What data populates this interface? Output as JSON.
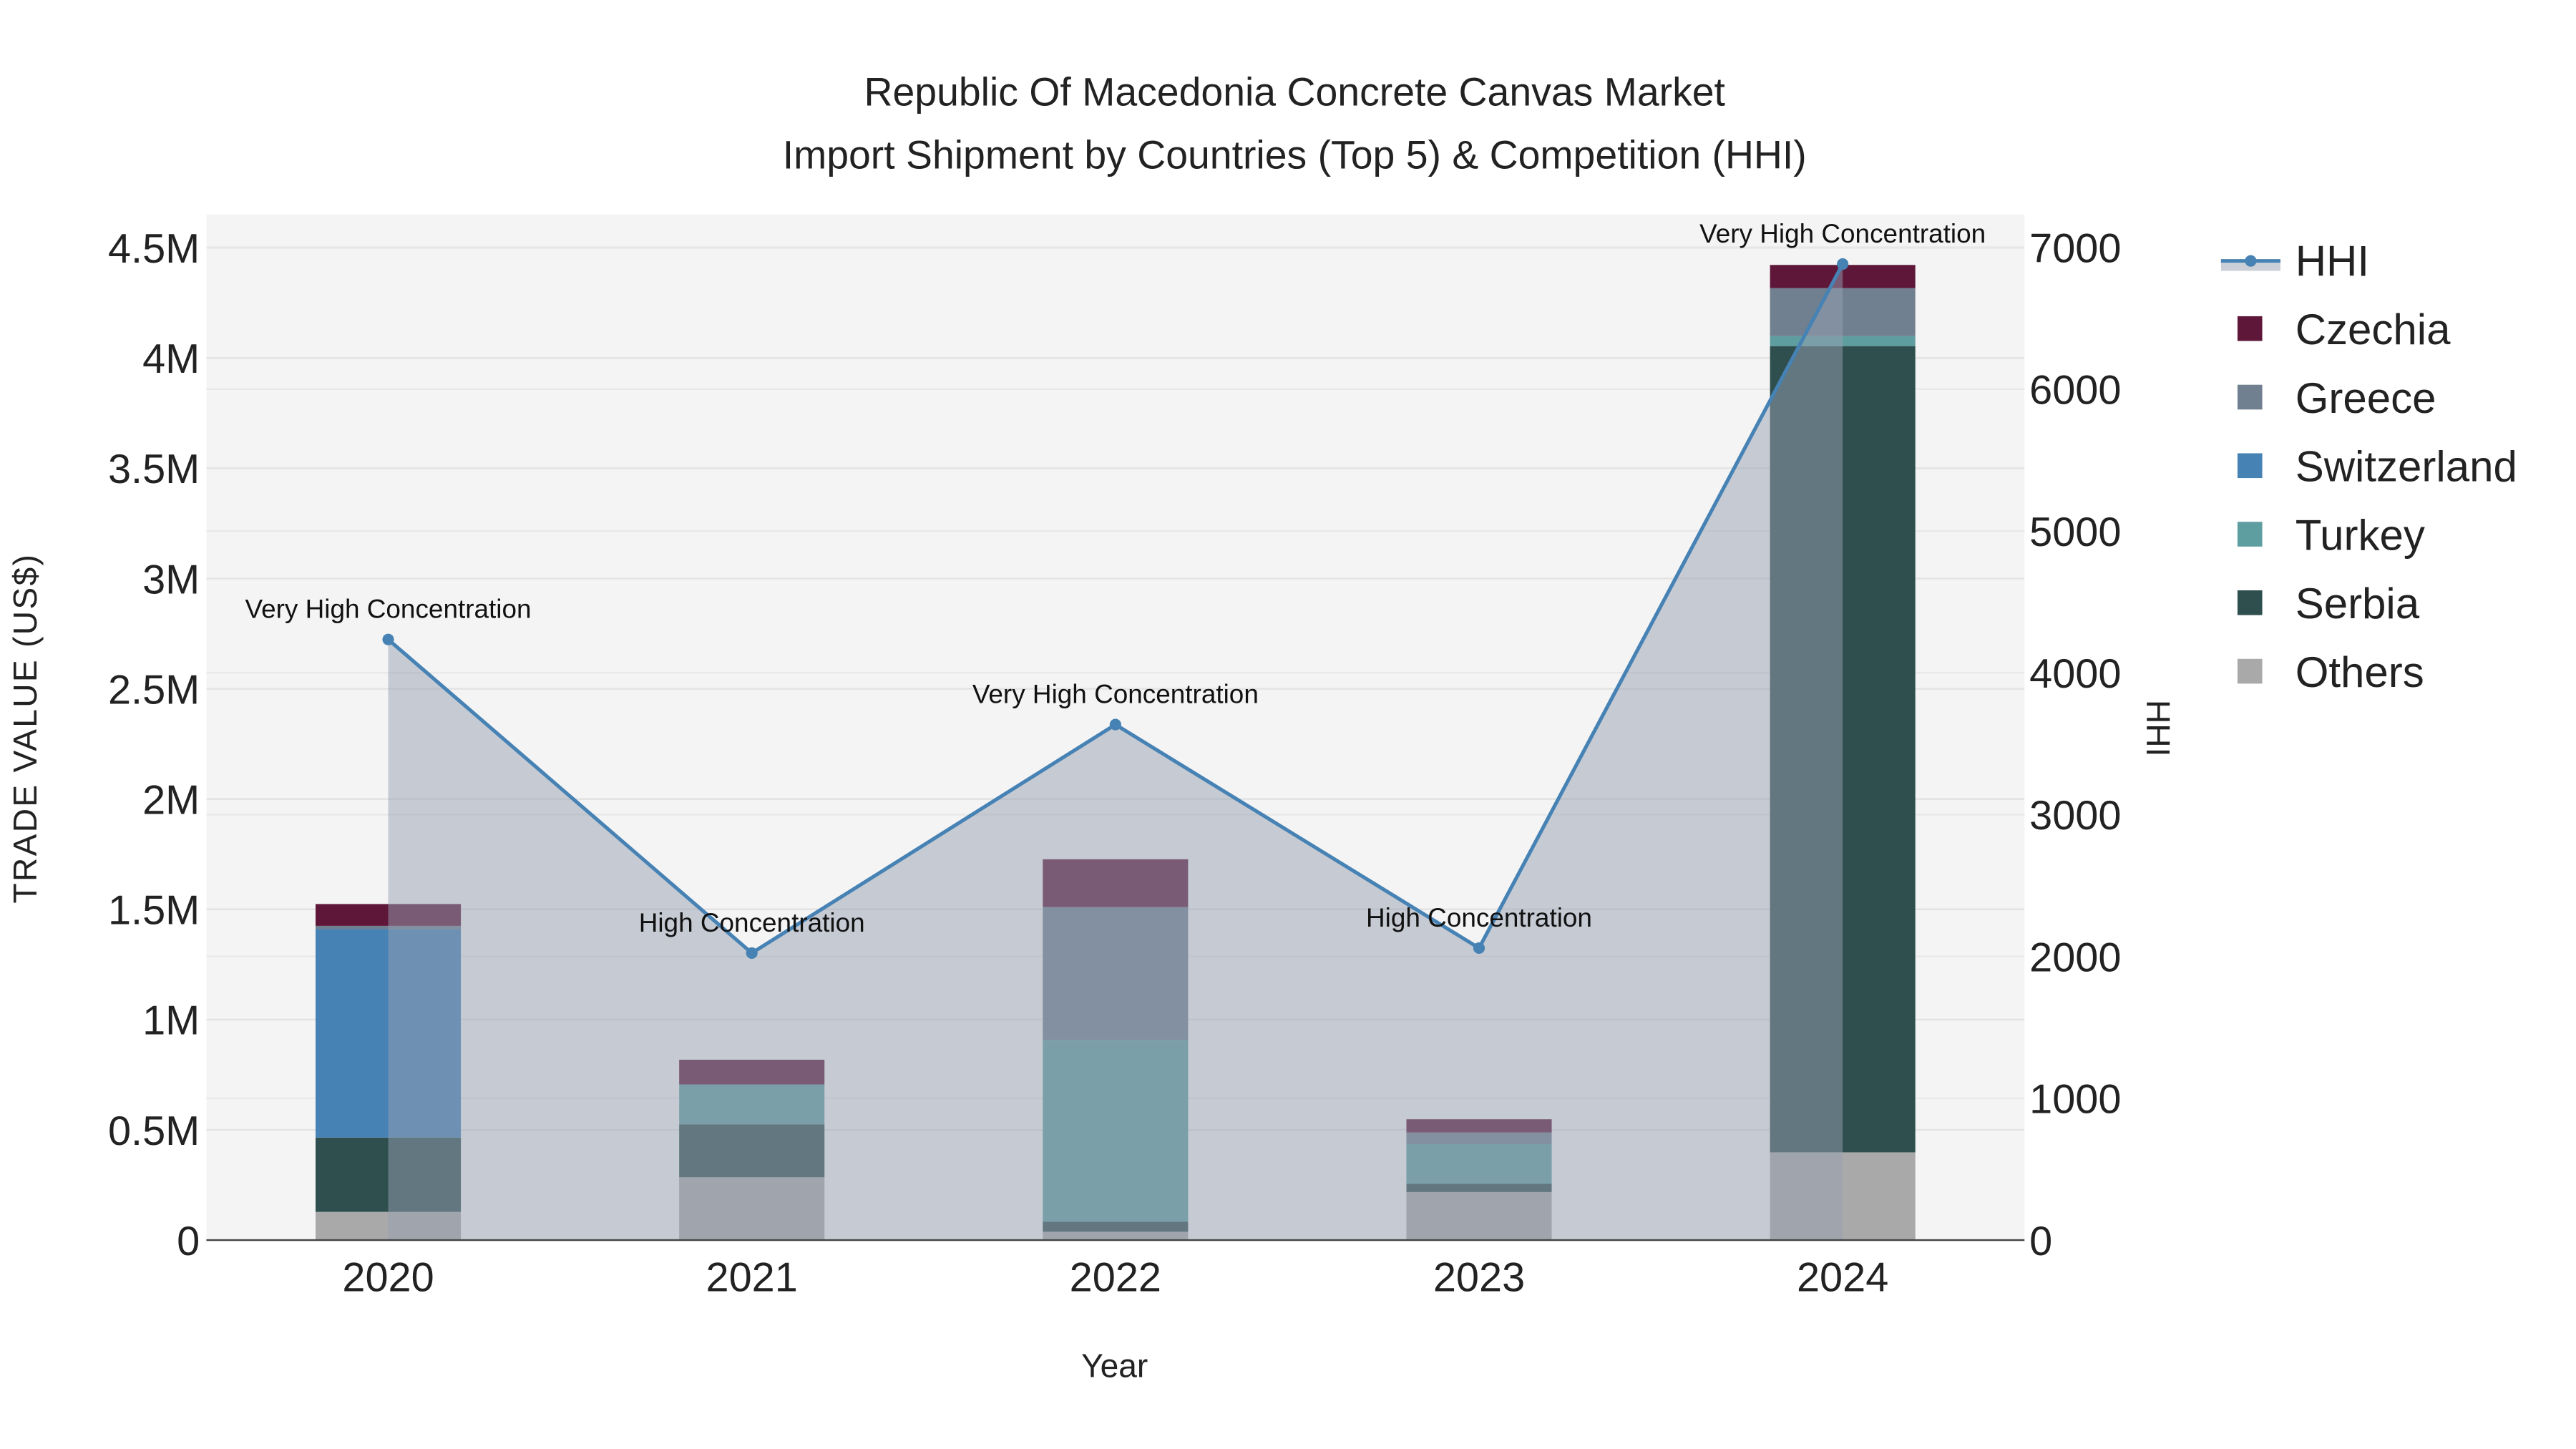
{
  "chart_data": {
    "type": "bar",
    "title": "Republic Of Macedonia Concrete Canvas Market",
    "subtitle": "Import Shipment by Countries (Top 5) & Competition (HHI)",
    "xlabel": "Year",
    "ylabel": "TRADE VALUE (US$)",
    "y2label": "HHI",
    "categories": [
      "2020",
      "2021",
      "2022",
      "2023",
      "2024"
    ],
    "ylim": [
      0,
      4650000
    ],
    "y2lim": [
      0,
      7230
    ],
    "yticks": [
      0,
      500000,
      1000000,
      1500000,
      2000000,
      2500000,
      3000000,
      3500000,
      4000000,
      4500000
    ],
    "ytick_labels": [
      "0",
      "0.5M",
      "1M",
      "1.5M",
      "2M",
      "2.5M",
      "3M",
      "3.5M",
      "4M",
      "4.5M"
    ],
    "y2ticks": [
      0,
      1000,
      2000,
      3000,
      4000,
      5000,
      6000,
      7000
    ],
    "y2tick_labels": [
      "0",
      "1000",
      "2000",
      "3000",
      "4000",
      "5000",
      "6000",
      "7000"
    ],
    "grid": true,
    "legend_placement": "right",
    "stacked": true,
    "series": [
      {
        "name": "Others",
        "color": "#a9a9a9",
        "values": [
          128000,
          285000,
          38000,
          218000,
          398000
        ]
      },
      {
        "name": "Serbia",
        "color": "#2f4f4f",
        "values": [
          337000,
          240000,
          45000,
          37000,
          3656000
        ]
      },
      {
        "name": "Turkey",
        "color": "#5f9ea0",
        "values": [
          0,
          181000,
          825000,
          180000,
          45000
        ]
      },
      {
        "name": "Switzerland",
        "color": "#4682b4",
        "values": [
          945000,
          0,
          0,
          0,
          0
        ]
      },
      {
        "name": "Greece",
        "color": "#708090",
        "values": [
          15000,
          0,
          602000,
          53000,
          218000
        ]
      },
      {
        "name": "Czechia",
        "color": "#5e1739",
        "values": [
          99000,
          112000,
          217000,
          60000,
          105000
        ]
      }
    ],
    "hhi": {
      "name": "HHI",
      "color": "#4682b4",
      "values": [
        4235,
        2024,
        3635,
        2059,
        6882
      ],
      "annotations": [
        "Very High Concentration",
        "High Concentration",
        "Very High Concentration",
        "High Concentration",
        "Very High Concentration"
      ]
    },
    "legend_order": [
      "HHI",
      "Czechia",
      "Greece",
      "Switzerland",
      "Turkey",
      "Serbia",
      "Others"
    ]
  }
}
